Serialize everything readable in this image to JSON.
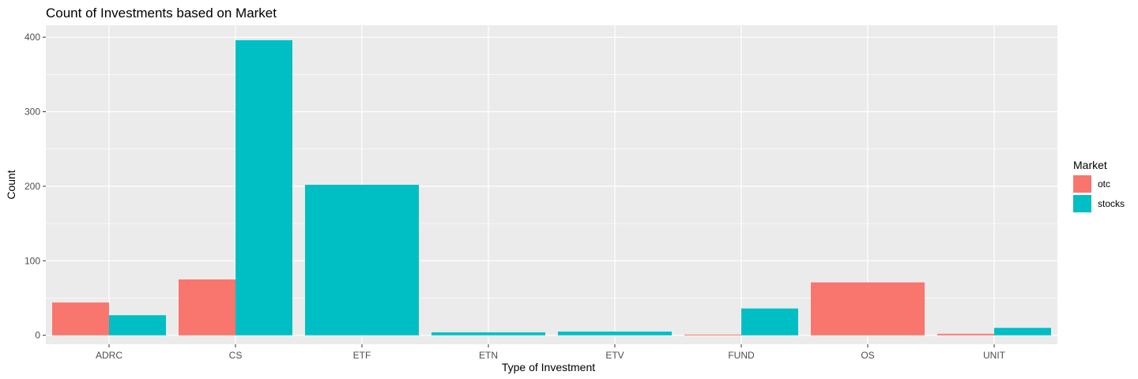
{
  "chart_data": {
    "type": "bar",
    "title": "Count of Investments based on Market",
    "xlabel": "Type of Investment",
    "ylabel": "Count",
    "categories": [
      "ADRC",
      "CS",
      "ETF",
      "ETN",
      "ETV",
      "FUND",
      "OS",
      "UNIT"
    ],
    "series": [
      {
        "name": "otc",
        "color": "#F8766D",
        "values": [
          44,
          75,
          null,
          null,
          null,
          1,
          71,
          2
        ]
      },
      {
        "name": "stocks",
        "color": "#00BFC4",
        "values": [
          27,
          396,
          202,
          4,
          5,
          36,
          null,
          10
        ]
      }
    ],
    "ylim": [
      -12,
      416
    ],
    "yticks": [
      0,
      100,
      200,
      300,
      400
    ],
    "grid": true,
    "panel_background": "#EBEBEB",
    "legend": {
      "title": "Market",
      "placement": "right"
    }
  }
}
